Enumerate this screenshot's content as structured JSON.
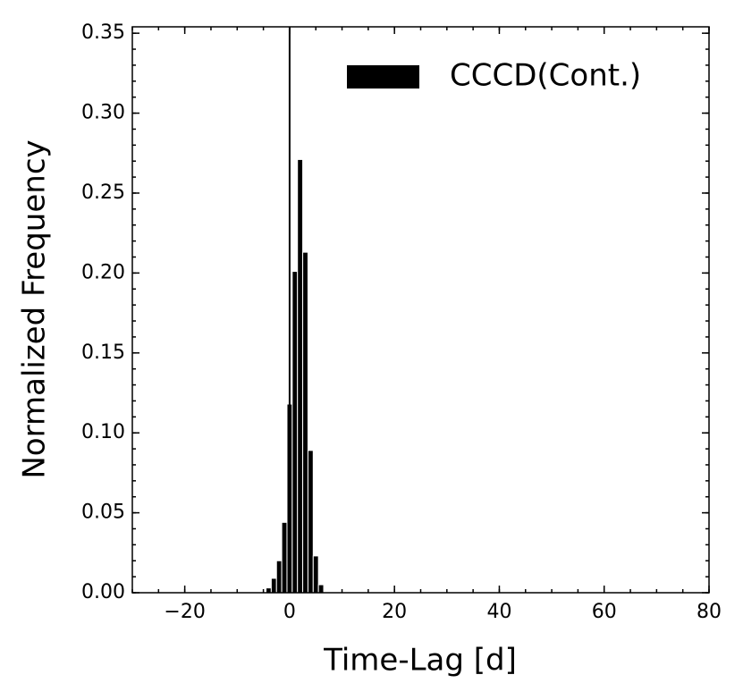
{
  "chart_data": {
    "type": "histogram",
    "xlabel": "Time-Lag [d]",
    "ylabel": "Normalized Frequency",
    "bins": [
      -4.5,
      -3.5,
      -2.5,
      -1.5,
      -0.5,
      0.5,
      1.5,
      2.5,
      3.5,
      4.5,
      5.5,
      6.5
    ],
    "series": [
      {
        "name": "CCCD(Cont.)",
        "color": "#000000",
        "values": [
          0.003,
          0.009,
          0.02,
          0.044,
          0.118,
          0.201,
          0.271,
          0.213,
          0.089,
          0.023,
          0.005
        ]
      }
    ],
    "vline": 0,
    "xlim": [
      -30,
      80
    ],
    "xticks": [
      {
        "value": -20,
        "label": "−20"
      },
      0,
      20,
      40,
      60,
      80
    ],
    "x_minor_step": 5,
    "ylim": [
      0,
      0.354
    ],
    "yticks": [
      {
        "value": 0,
        "label": "0.00"
      },
      0.05,
      {
        "value": 0.1,
        "label": "0.10"
      },
      0.15,
      {
        "value": 0.2,
        "label": "0.20"
      },
      0.25,
      {
        "value": 0.3,
        "label": "0.30"
      },
      0.35
    ],
    "y_minor_step": 0.01,
    "legend": "upper right"
  }
}
